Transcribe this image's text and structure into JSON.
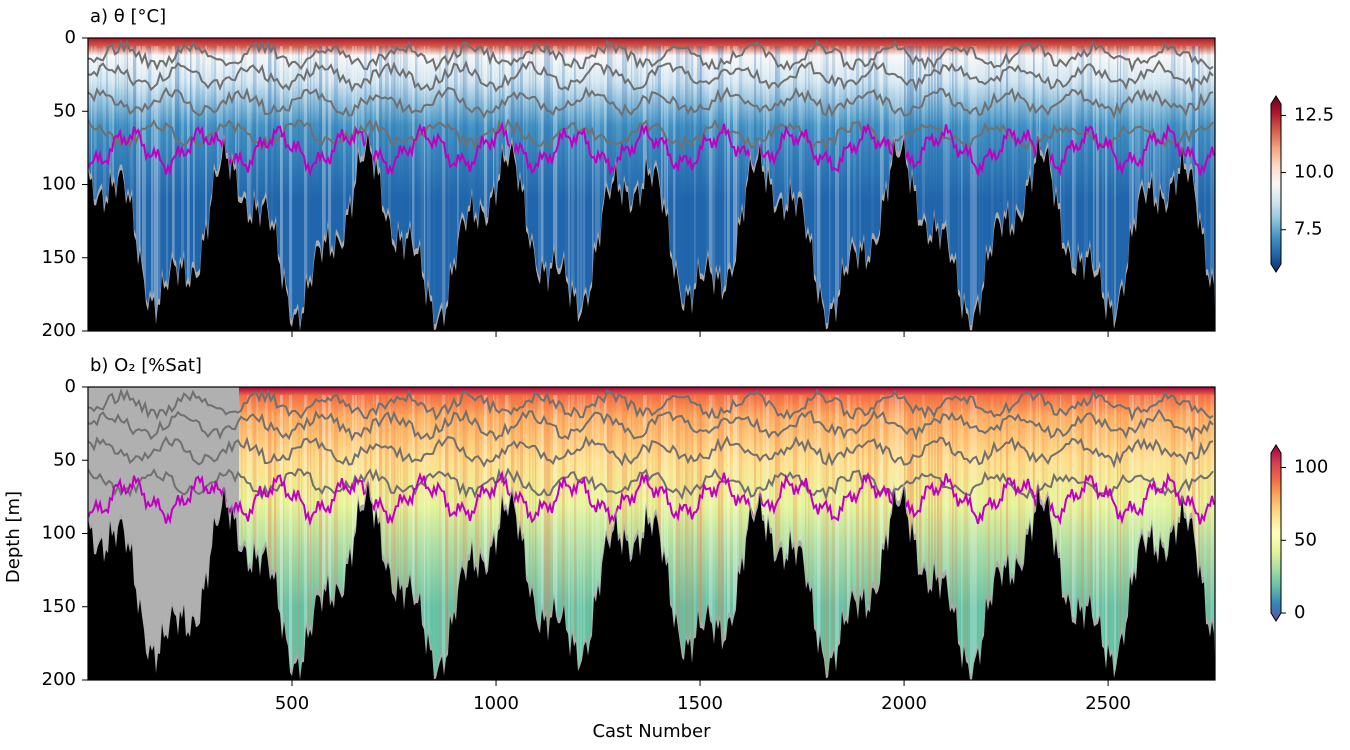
{
  "chart_data": [
    {
      "type": "heatmap",
      "title": "a) θ [°C]",
      "xlim": [
        0,
        2762
      ],
      "xticks": [
        500,
        1000,
        1500,
        2000,
        2500
      ],
      "ylim": [
        200,
        0
      ],
      "yticks": [
        0,
        50,
        100,
        150,
        200
      ],
      "colorbar": {
        "colormap": "RdBu_r",
        "lim": [
          6,
          13
        ],
        "ticks": [
          7.5,
          {
            "value": 10,
            "label": "10.0"
          },
          12.5
        ]
      }
    },
    {
      "type": "heatmap",
      "title": "b) O₂ [%Sat]",
      "xlabel": "Cast Number",
      "ylabel": "Depth [m]",
      "xlim": [
        0,
        2762
      ],
      "xticks": [
        500,
        1000,
        1500,
        2000,
        2500
      ],
      "ylim": [
        200,
        0
      ],
      "yticks": [
        0,
        50,
        100,
        150,
        200
      ],
      "colorbar": {
        "colormap": "Spectral_r",
        "lim": [
          0,
          110
        ],
        "ticks": [
          0,
          50,
          100
        ]
      }
    }
  ]
}
